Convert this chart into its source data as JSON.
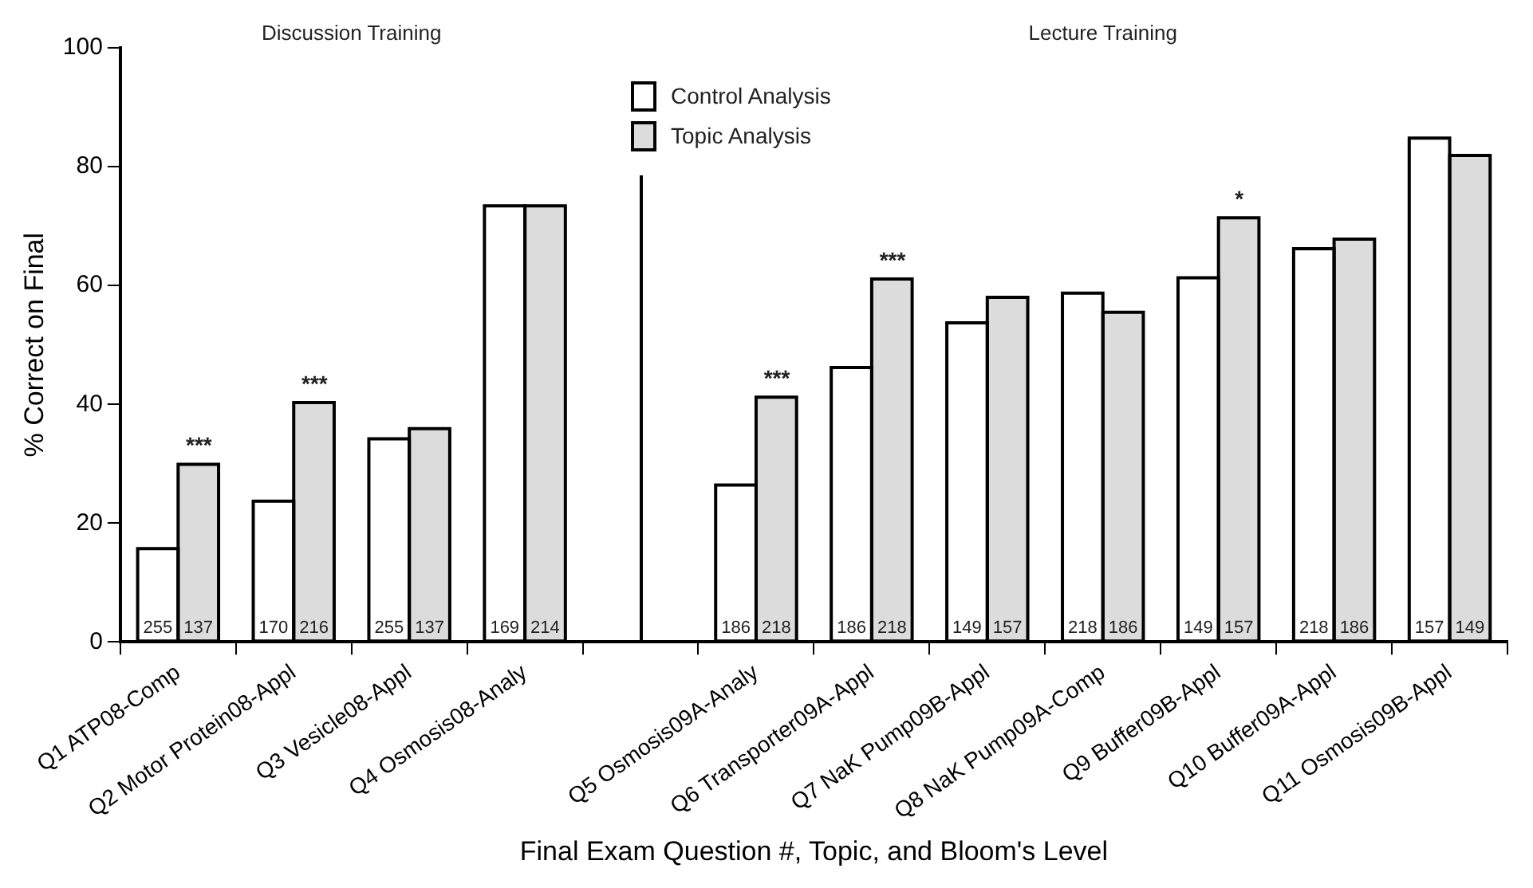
{
  "chart_data": {
    "type": "bar",
    "xlabel": "Final Exam Question #, Topic, and Bloom's Level",
    "ylabel": "% Correct on Final",
    "categories": [
      "Q1 ATP08-Comp",
      "Q2 Motor Protein08-Appl",
      "Q3 Vesicle08-Appl",
      "Q4 Osmosis08-Analy",
      null,
      "Q5 Osmosis09A-Analy",
      "Q6 Transporter09A-Appl",
      "Q7 NaK Pump09B-Appl",
      "Q8 NaK Pump09A-Comp",
      "Q9 Buffer09B-Appl",
      "Q10 Buffer09A-Appl",
      "Q11 Osmosis09B-Appl"
    ],
    "series": [
      {
        "name": "Control Analysis",
        "color": "#ffffff",
        "values": [
          15.7,
          23.7,
          34.2,
          73.4,
          null,
          26.4,
          46.2,
          53.7,
          58.7,
          61.3,
          66.2,
          84.8
        ]
      },
      {
        "name": "Topic Analysis",
        "color": "#dcdcdc",
        "values": [
          29.9,
          40.3,
          35.9,
          73.4,
          null,
          41.2,
          61.1,
          58.0,
          55.5,
          71.4,
          67.8,
          81.9
        ]
      }
    ],
    "ylim": [
      0,
      100
    ],
    "yticks": [
      0,
      20,
      40,
      60,
      80,
      100
    ],
    "grid": "x",
    "legend": "top",
    "annotations": [
      "Discussion Training",
      "Lecture Training",
      {
        "text": "***",
        "x": "Q1 ATP08-Comp",
        "y": 29.9
      },
      {
        "text": "***",
        "x": "Q2 Motor Protein08-Appl",
        "y": 40.3
      },
      {
        "text": "***",
        "x": "Q5 Osmosis09A-Analy",
        "y": 41.2
      },
      {
        "text": "***",
        "x": "Q6 Transporter09A-Appl",
        "y": 61.1
      },
      {
        "text": "*",
        "x": "Q9 Buffer09B-Appl",
        "y": 71.4
      },
      {
        "text": "255",
        "x": "Q1 ATP08-Comp",
        "y": 0
      },
      {
        "text": "137",
        "x": "Q1 ATP08-Comp",
        "y": 0
      },
      {
        "text": "170",
        "x": "Q2 Motor Protein08-Appl",
        "y": 0
      },
      {
        "text": "216",
        "x": "Q2 Motor Protein08-Appl",
        "y": 0
      },
      {
        "text": "255",
        "x": "Q3 Vesicle08-Appl",
        "y": 0
      },
      {
        "text": "137",
        "x": "Q3 Vesicle08-Appl",
        "y": 0
      },
      {
        "text": "169",
        "x": "Q4 Osmosis08-Analy",
        "y": 0
      },
      {
        "text": "214",
        "x": "Q4 Osmosis08-Analy",
        "y": 0
      },
      {
        "text": "186",
        "x": "Q5 Osmosis09A-Analy",
        "y": 0
      },
      {
        "text": "218",
        "x": "Q5 Osmosis09A-Analy",
        "y": 0
      },
      {
        "text": "186",
        "x": "Q6 Transporter09A-Appl",
        "y": 0
      },
      {
        "text": "218",
        "x": "Q6 Transporter09A-Appl",
        "y": 0
      },
      {
        "text": "149",
        "x": "Q7 NaK Pump09B-Appl",
        "y": 0
      },
      {
        "text": "157",
        "x": "Q7 NaK Pump09B-Appl",
        "y": 0
      },
      {
        "text": "218",
        "x": "Q8 NaK Pump09A-Comp",
        "y": 0
      },
      {
        "text": "186",
        "x": "Q8 NaK Pump09A-Comp",
        "y": 0
      },
      {
        "text": "149",
        "x": "Q9 Buffer09B-Appl",
        "y": 0
      },
      {
        "text": "157",
        "x": "Q9 Buffer09B-Appl",
        "y": 0
      },
      {
        "text": "218",
        "x": "Q10 Buffer09A-Appl",
        "y": 0
      },
      {
        "text": "186",
        "x": "Q10 Buffer09A-Appl",
        "y": 0
      },
      {
        "text": "157",
        "x": "Q11 Osmosis09B-Appl",
        "y": 0
      },
      {
        "text": "149",
        "x": "Q11 Osmosis09B-Appl",
        "y": 0
      }
    ]
  }
}
